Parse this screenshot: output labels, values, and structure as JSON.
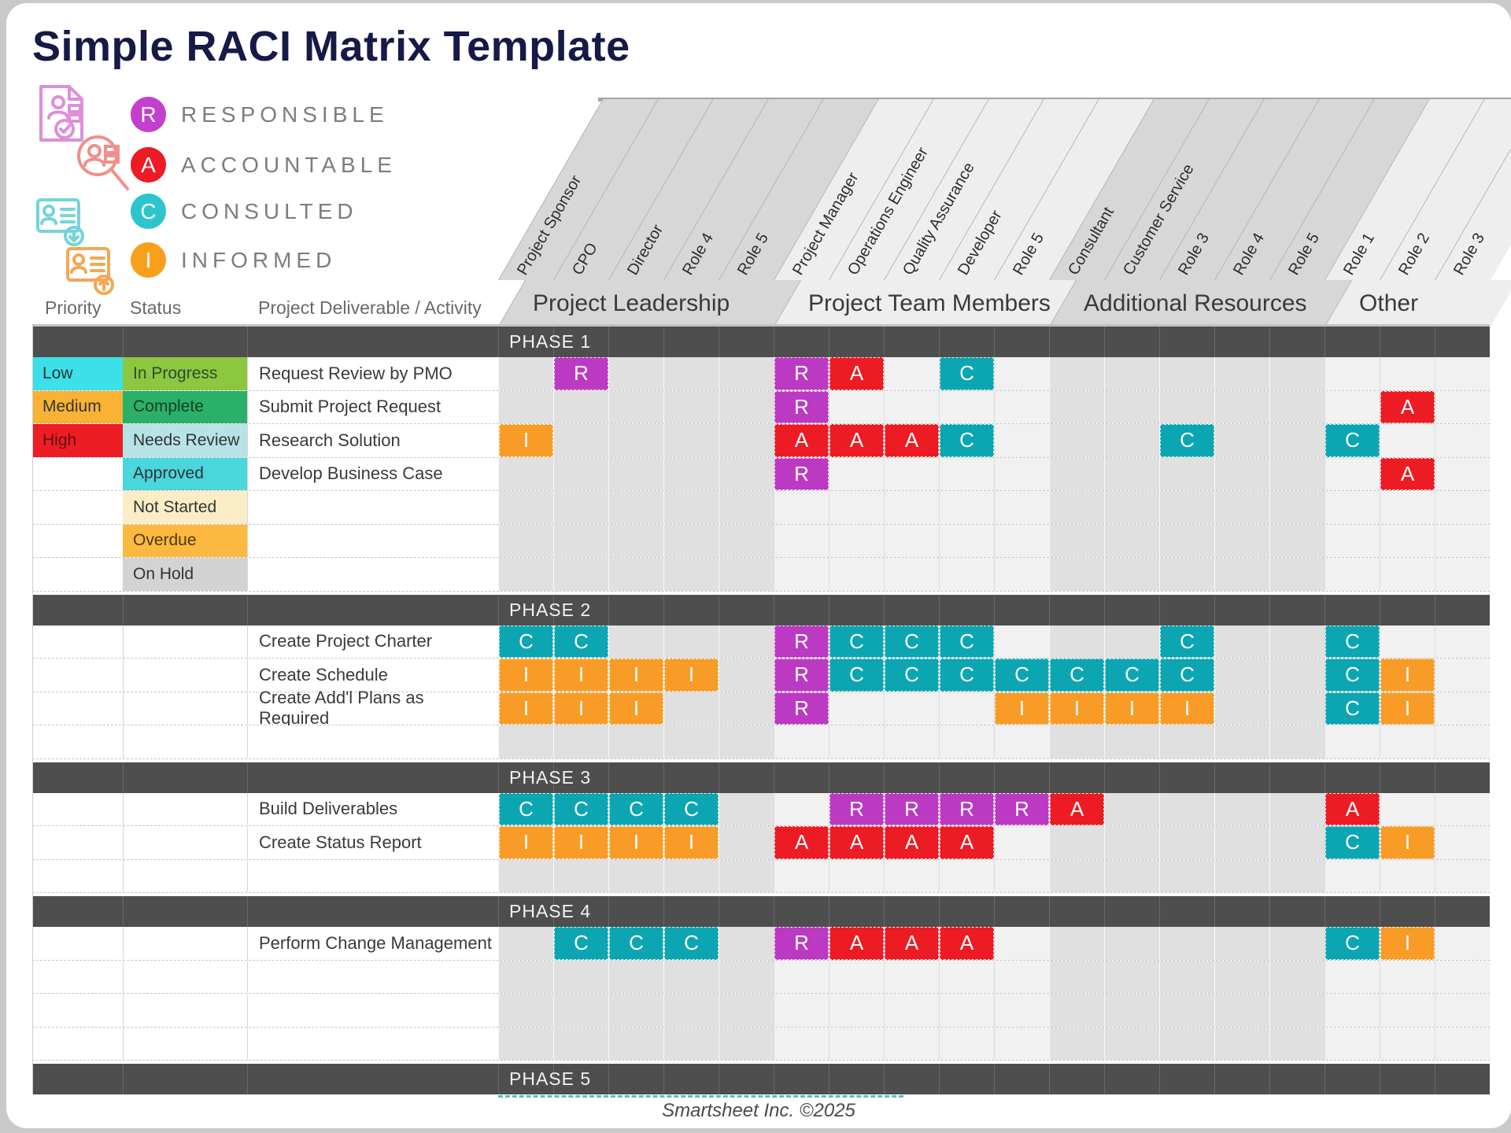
{
  "title": "Simple RACI Matrix Template",
  "legend": [
    {
      "letter": "R",
      "label": "RESPONSIBLE",
      "color": "#c43fcd"
    },
    {
      "letter": "A",
      "label": "ACCOUNTABLE",
      "color": "#ed1b24"
    },
    {
      "letter": "C",
      "label": "CONSULTED",
      "color": "#2cc5cd"
    },
    {
      "letter": "I",
      "label": "INFORMED",
      "color": "#f8a01d"
    }
  ],
  "table_headers": {
    "priority": "Priority",
    "status": "Status",
    "activity": "Project Deliverable / Activity"
  },
  "groups": [
    {
      "label": "Project Leadership",
      "span": 5
    },
    {
      "label": "Project Team Members",
      "span": 5
    },
    {
      "label": "Additional Resources",
      "span": 5
    },
    {
      "label": "Other",
      "span": 3
    }
  ],
  "columns": [
    "Project Sponsor",
    "CPO",
    "Director",
    "Role 4",
    "Role 5",
    "Project Manager",
    "Operations Engineer",
    "Quality Assurance",
    "Developer",
    "Role 5",
    "Consultant",
    "Customer Service",
    "Role 3",
    "Role 4",
    "Role 5",
    "Role 1",
    "Role 2",
    "Role 3"
  ],
  "priority_legend": [
    {
      "label": "Low",
      "color": "#3be0e8",
      "text": "#333333"
    },
    {
      "label": "Medium",
      "color": "#f9b234",
      "text": "#333333"
    },
    {
      "label": "High",
      "color": "#ee1c25",
      "text": "#5f1212"
    }
  ],
  "status_legend": [
    {
      "label": "In Progress",
      "color": "#8dc63f",
      "text": "#2f4a2f"
    },
    {
      "label": "Complete",
      "color": "#2bb167",
      "text": "#123f26"
    },
    {
      "label": "Needs Review",
      "color": "#b5e3e6",
      "text": "#333333"
    },
    {
      "label": "Approved",
      "color": "#49d6dc",
      "text": "#333333"
    },
    {
      "label": "Not Started",
      "color": "#fbeec6",
      "text": "#333333"
    },
    {
      "label": "Overdue",
      "color": "#fcb83f",
      "text": "#4d3a0a"
    },
    {
      "label": "On Hold",
      "color": "#d3d3d3",
      "text": "#333333"
    }
  ],
  "colors": {
    "raci": {
      "R": "#bc39c4",
      "A": "#ed1b24",
      "C": "#0ca6b2",
      "I": "#f89c27"
    },
    "phase_band": "#4e4e4e",
    "group_header_bg": [
      "#d7d7d7",
      "#eeeeee",
      "#d7d7d7",
      "#eeeeee"
    ],
    "group_body_bg": [
      "#e0e0e0",
      "#f1f1f1",
      "#e0e0e0",
      "#f1f1f1"
    ]
  },
  "phases": [
    {
      "label": "PHASE 1",
      "rows": [
        {
          "priority": 0,
          "status": 0,
          "activity": "Request Review by PMO",
          "cells": {
            "1": "R",
            "5": "R",
            "6": "A",
            "8": "C"
          }
        },
        {
          "priority": 1,
          "status": 1,
          "activity": "Submit Project Request",
          "cells": {
            "5": "R",
            "16": "A"
          }
        },
        {
          "priority": 2,
          "status": 2,
          "activity": "Research Solution",
          "cells": {
            "0": "I",
            "5": "A",
            "6": "A",
            "7": "A",
            "8": "C",
            "12": "C",
            "15": "C"
          }
        },
        {
          "status": 3,
          "activity": "Develop Business Case",
          "cells": {
            "5": "R",
            "16": "A"
          }
        },
        {
          "status": 4,
          "activity": "",
          "cells": {}
        },
        {
          "status": 5,
          "activity": "",
          "cells": {}
        },
        {
          "status": 6,
          "activity": "",
          "cells": {}
        }
      ]
    },
    {
      "label": "PHASE 2",
      "rows": [
        {
          "activity": "Create Project Charter",
          "cells": {
            "0": "C",
            "1": "C",
            "5": "R",
            "6": "C",
            "7": "C",
            "8": "C",
            "12": "C",
            "15": "C"
          }
        },
        {
          "activity": "Create Schedule",
          "cells": {
            "0": "I",
            "1": "I",
            "2": "I",
            "3": "I",
            "5": "R",
            "6": "C",
            "7": "C",
            "8": "C",
            "9": "C",
            "10": "C",
            "11": "C",
            "12": "C",
            "15": "C",
            "16": "I"
          }
        },
        {
          "activity": "Create Add'l Plans as Required",
          "cells": {
            "0": "I",
            "1": "I",
            "2": "I",
            "5": "R",
            "9": "I",
            "10": "I",
            "11": "I",
            "12": "I",
            "15": "C",
            "16": "I"
          }
        },
        {
          "activity": "",
          "cells": {}
        }
      ]
    },
    {
      "label": "PHASE 3",
      "rows": [
        {
          "activity": "Build Deliverables",
          "cells": {
            "0": "C",
            "1": "C",
            "2": "C",
            "3": "C",
            "6": "R",
            "7": "R",
            "8": "R",
            "9": "R",
            "10": "A",
            "15": "A"
          }
        },
        {
          "activity": "Create Status Report",
          "cells": {
            "0": "I",
            "1": "I",
            "2": "I",
            "3": "I",
            "5": "A",
            "6": "A",
            "7": "A",
            "8": "A",
            "15": "C",
            "16": "I"
          }
        },
        {
          "activity": "",
          "cells": {}
        }
      ]
    },
    {
      "label": "PHASE 4",
      "rows": [
        {
          "activity": "Perform Change Management",
          "cells": {
            "1": "C",
            "2": "C",
            "3": "C",
            "5": "R",
            "6": "A",
            "7": "A",
            "8": "A",
            "15": "C",
            "16": "I"
          }
        },
        {
          "activity": "",
          "cells": {}
        },
        {
          "activity": "",
          "cells": {}
        },
        {
          "activity": "",
          "cells": {}
        }
      ]
    },
    {
      "label": "PHASE 5",
      "rows": []
    }
  ],
  "footer": "Smartsheet Inc. ©2025"
}
